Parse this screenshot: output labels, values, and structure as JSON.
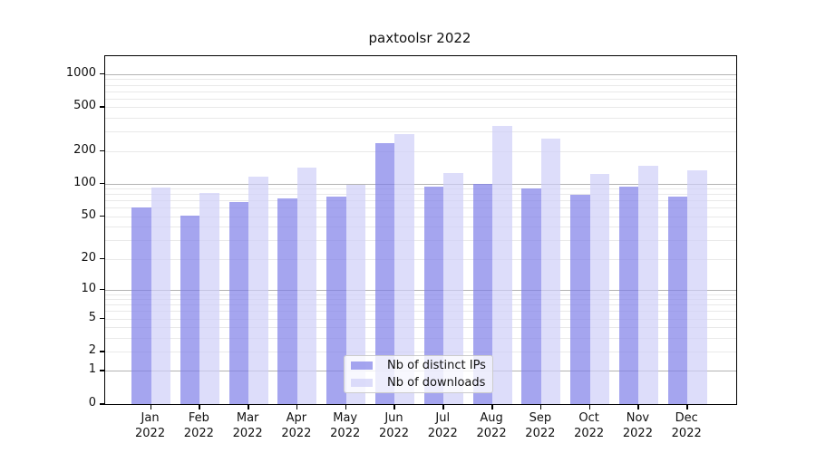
{
  "title": "paxtoolsr 2022",
  "chart_data": {
    "type": "bar",
    "title": "paxtoolsr 2022",
    "categories": [
      "Jan 2022",
      "Feb 2022",
      "Mar 2022",
      "Apr 2022",
      "May 2022",
      "Jun 2022",
      "Jul 2022",
      "Aug 2022",
      "Sep 2022",
      "Oct 2022",
      "Nov 2022",
      "Dec 2022"
    ],
    "series": [
      {
        "name": "Nb of distinct IPs",
        "color": "rgba(127,127,232,0.7)",
        "values": [
          60,
          51,
          68,
          73,
          76,
          235,
          94,
          100,
          90,
          79,
          94,
          76
        ]
      },
      {
        "name": "Nb of downloads",
        "color": "rgba(206,206,248,0.7)",
        "values": [
          92,
          82,
          117,
          140,
          97,
          285,
          125,
          340,
          258,
          123,
          146,
          132
        ]
      }
    ],
    "yticks": [
      0,
      1,
      2,
      5,
      10,
      20,
      50,
      100,
      200,
      500,
      1000
    ],
    "ylim": [
      0,
      1460
    ],
    "scale": "log1p",
    "grid": "horizontal",
    "legend_position": "bottom-center",
    "xlabel": "",
    "ylabel": ""
  },
  "colors": {
    "major_grid": "#b3b3b3",
    "minor_grid": "#e9e9e9",
    "spine": "#000000",
    "legend_border": "#cccccc",
    "legend_bg": "rgba(255,255,255,0.8)",
    "background": "#ffffff"
  }
}
